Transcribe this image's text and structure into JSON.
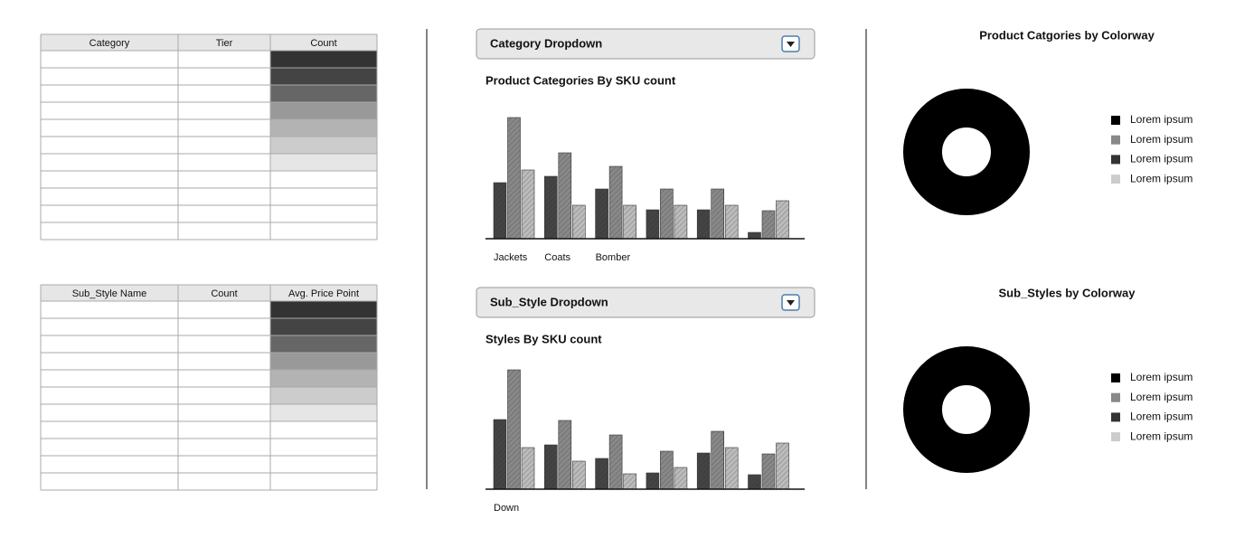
{
  "tables": [
    {
      "headers": [
        "Category",
        "Tier",
        "Count"
      ],
      "shades": [
        "#333333",
        "#444444",
        "#666666",
        "#999999",
        "#b3b3b3",
        "#cccccc",
        "#e6e6e6"
      ]
    },
    {
      "headers": [
        "Sub_Style Name",
        "Count",
        "Avg. Price Point"
      ],
      "shades": [
        "#333333",
        "#444444",
        "#666666",
        "#999999",
        "#b3b3b3",
        "#cccccc",
        "#e6e6e6"
      ]
    }
  ],
  "dropdowns": [
    {
      "label": "Category Dropdown"
    },
    {
      "label": "Sub_Style Dropdown"
    }
  ],
  "charts": [
    {
      "type": "bar",
      "title": "Product Categories By SKU count",
      "categories": [
        "Jackets",
        "Coats",
        "Bomber",
        null,
        null,
        null
      ],
      "ylim": [
        0,
        140
      ],
      "series": [
        {
          "color": "#444444",
          "values": [
            62,
            69,
            55,
            32,
            32,
            7
          ]
        },
        {
          "color": "#888888",
          "values": [
            134,
            95,
            80,
            55,
            55,
            31
          ]
        },
        {
          "color": "#bbbbbb",
          "values": [
            76,
            37,
            37,
            37,
            37,
            42
          ]
        }
      ]
    },
    {
      "type": "bar",
      "title": "Styles By SKU count",
      "categories": [
        "Down",
        null,
        null,
        null,
        null,
        null
      ],
      "ylim": [
        0,
        140
      ],
      "series": [
        {
          "color": "#444444",
          "values": [
            77,
            49,
            34,
            18,
            40,
            16
          ]
        },
        {
          "color": "#888888",
          "values": [
            132,
            76,
            60,
            42,
            64,
            39
          ]
        },
        {
          "color": "#bbbbbb",
          "values": [
            46,
            31,
            17,
            24,
            46,
            51
          ]
        }
      ]
    }
  ],
  "donuts": [
    {
      "title": "Product Catgories by Colorway",
      "color": "#000000",
      "legend": [
        {
          "label": "Lorem ipsum",
          "color": "#000000"
        },
        {
          "label": "Lorem ipsum",
          "color": "#888888"
        },
        {
          "label": "Lorem ipsum",
          "color": "#333333"
        },
        {
          "label": "Lorem ipsum",
          "color": "#cccccc"
        }
      ]
    },
    {
      "title": "Sub_Styles by Colorway",
      "color": "#000000",
      "legend": [
        {
          "label": "Lorem ipsum",
          "color": "#000000"
        },
        {
          "label": "Lorem ipsum",
          "color": "#888888"
        },
        {
          "label": "Lorem ipsum",
          "color": "#333333"
        },
        {
          "label": "Lorem ipsum",
          "color": "#cccccc"
        }
      ]
    }
  ]
}
